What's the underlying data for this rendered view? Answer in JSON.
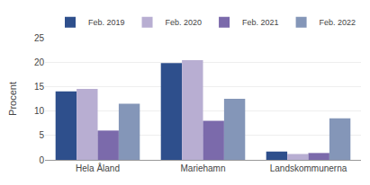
{
  "chart_data": {
    "type": "bar",
    "categories": [
      "Hela Åland",
      "Mariehamn",
      "Landskommunerna"
    ],
    "series": [
      {
        "name": "Feb. 2019",
        "color": "#2e4f8c",
        "values": [
          14.0,
          19.8,
          1.7
        ]
      },
      {
        "name": "Feb. 2020",
        "color": "#b8aed2",
        "values": [
          14.5,
          20.4,
          1.2
        ]
      },
      {
        "name": "Feb. 2021",
        "color": "#7b6aab",
        "values": [
          6.0,
          8.0,
          1.4
        ]
      },
      {
        "name": "Feb. 2022",
        "color": "#8496b8",
        "values": [
          11.5,
          12.5,
          8.5
        ]
      }
    ],
    "ylabel": "Procent",
    "ylim": [
      0,
      25
    ],
    "yticks": [
      0,
      5,
      10,
      15,
      20,
      25
    ],
    "grid": true,
    "legend": "upper right"
  }
}
